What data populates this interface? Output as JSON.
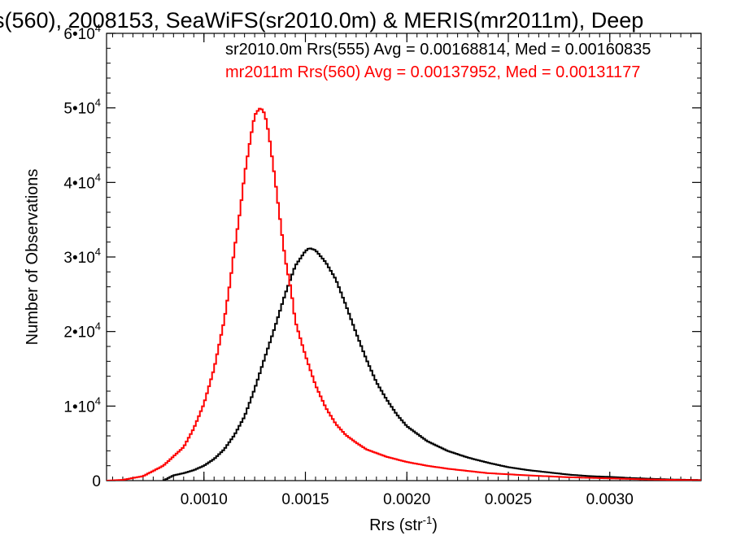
{
  "chart_data": {
    "type": "line",
    "title": "s(560), 2008153, SeaWiFS(sr2010.0m) & MERIS(mr2011m), Deep",
    "xlabel": "Rrs (str",
    "xlabel_sup": "-1",
    "xlabel_end": ")",
    "ylabel": "Number of Observations",
    "xlim": [
      0.00052,
      0.00345
    ],
    "ylim": [
      0,
      60000
    ],
    "x_ticks": [
      0.001,
      0.0015,
      0.002,
      0.0025,
      0.003
    ],
    "x_tick_labels": [
      "0.0010",
      "0.0015",
      "0.0020",
      "0.0025",
      "0.0030"
    ],
    "y_ticks": [
      {
        "value": 0,
        "mantissa": "0",
        "exp": ""
      },
      {
        "value": 10000,
        "mantissa": "1•10",
        "exp": "4"
      },
      {
        "value": 20000,
        "mantissa": "2•10",
        "exp": "4"
      },
      {
        "value": 30000,
        "mantissa": "3•10",
        "exp": "4"
      },
      {
        "value": 40000,
        "mantissa": "4•10",
        "exp": "4"
      },
      {
        "value": 50000,
        "mantissa": "5•10",
        "exp": "4"
      },
      {
        "value": 60000,
        "mantissa": "6•10",
        "exp": "4"
      }
    ],
    "bin_width": 1e-05,
    "series": [
      {
        "name": "sr2010.0m Rrs(555) Avg = 0.00168814, Med = 0.00160835",
        "color": "#000000",
        "x": [
          0.0008,
          0.00085,
          0.0009,
          0.00095,
          0.001,
          0.00105,
          0.0011,
          0.00115,
          0.0012,
          0.00125,
          0.0013,
          0.00135,
          0.0014,
          0.00145,
          0.0015,
          0.00152,
          0.00155,
          0.0016,
          0.00165,
          0.0017,
          0.00175,
          0.0018,
          0.00185,
          0.0019,
          0.00195,
          0.002,
          0.0021,
          0.0022,
          0.0023,
          0.0024,
          0.0025,
          0.0026,
          0.0027,
          0.0028,
          0.0029,
          0.003,
          0.0031,
          0.0032,
          0.0033,
          0.0034,
          0.00345
        ],
        "y": [
          0,
          700,
          1000,
          1400,
          2000,
          2900,
          4200,
          6100,
          8600,
          12300,
          16500,
          20600,
          25000,
          28800,
          30800,
          31200,
          30900,
          29300,
          27000,
          23500,
          19800,
          16300,
          13200,
          10900,
          8900,
          7300,
          5300,
          4000,
          3100,
          2400,
          1800,
          1400,
          1100,
          800,
          600,
          500,
          350,
          250,
          150,
          100,
          80
        ]
      },
      {
        "name": "mr2011m Rrs(560) Avg = 0.00137952, Med = 0.00131177",
        "color": "#ff0000",
        "x": [
          0.00052,
          0.0006,
          0.0007,
          0.0008,
          0.0009,
          0.00095,
          0.001,
          0.00105,
          0.0011,
          0.00113,
          0.00115,
          0.00118,
          0.0012,
          0.00123,
          0.00125,
          0.00127,
          0.00128,
          0.0013,
          0.00132,
          0.00135,
          0.00138,
          0.0014,
          0.00143,
          0.00145,
          0.0015,
          0.00155,
          0.0016,
          0.00165,
          0.0017,
          0.00175,
          0.0018,
          0.0019,
          0.002,
          0.0021,
          0.0022,
          0.0024,
          0.0026,
          0.0028,
          0.003,
          0.0032,
          0.00345
        ],
        "y": [
          0,
          100,
          600,
          2000,
          4500,
          7000,
          10300,
          15000,
          21500,
          26800,
          31000,
          36500,
          41000,
          46000,
          49000,
          49800,
          50000,
          49200,
          46500,
          40500,
          34000,
          29800,
          25500,
          21400,
          16800,
          12800,
          9800,
          7600,
          6100,
          5100,
          4200,
          3200,
          2500,
          2000,
          1600,
          1000,
          700,
          450,
          300,
          150,
          50
        ]
      }
    ]
  }
}
